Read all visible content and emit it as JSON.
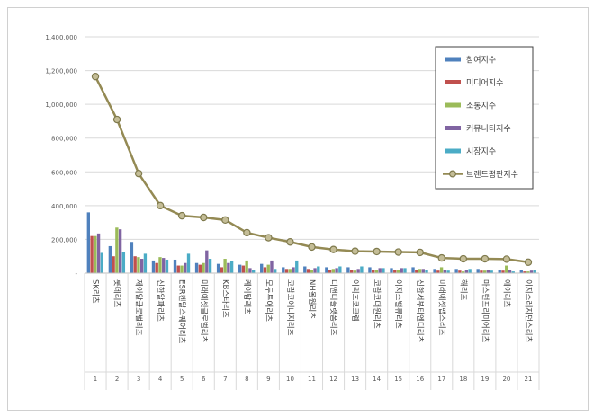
{
  "chart_data": {
    "type": "bar",
    "title": "",
    "xlabel": "",
    "ylabel": "",
    "ylim": [
      0,
      1400000
    ],
    "yticks": [
      "-",
      "200,000",
      "400,000",
      "600,000",
      "800,000",
      "1,000,000",
      "1,200,000",
      "1,400,000"
    ],
    "grid": true,
    "legend_position": "top-right",
    "categories": [
      "SK리츠",
      "롯데리츠",
      "제이알글로벌리츠",
      "신한알파리츠",
      "ESR켄달스퀘어리츠",
      "미래에셋글로벌리츠",
      "KB스타리츠",
      "케이탑리츠",
      "모두투어리츠",
      "코람코에너지리츠",
      "NH올원리츠",
      "디앤디플랫폼리츠",
      "이리츠코크렙",
      "코람코더원리츠",
      "이지스밸류리츠",
      "신한서부티엔디리츠",
      "미래에셋맵스리츠",
      "해리츠",
      "마스턴프리미어리츠",
      "에이리츠",
      "이지스레지던스리츠"
    ],
    "ranks": [
      "1",
      "2",
      "3",
      "4",
      "5",
      "6",
      "7",
      "8",
      "9",
      "10",
      "11",
      "12",
      "13",
      "14",
      "15",
      "16",
      "17",
      "18",
      "19",
      "20",
      "21"
    ],
    "series": [
      {
        "name": "참여지수",
        "kind": "bar",
        "color": "#4f81bd",
        "values": [
          360000,
          160000,
          185000,
          75000,
          80000,
          60000,
          55000,
          50000,
          55000,
          35000,
          40000,
          35000,
          35000,
          35000,
          30000,
          35000,
          25000,
          25000,
          25000,
          20000,
          20000
        ]
      },
      {
        "name": "미디어지수",
        "kind": "bar",
        "color": "#c0504d",
        "values": [
          220000,
          100000,
          100000,
          60000,
          45000,
          50000,
          35000,
          45000,
          35000,
          25000,
          25000,
          20000,
          20000,
          20000,
          20000,
          20000,
          15000,
          15000,
          15000,
          15000,
          10000
        ]
      },
      {
        "name": "소통지수",
        "kind": "bar",
        "color": "#9bbb59",
        "values": [
          220000,
          270000,
          95000,
          95000,
          45000,
          60000,
          85000,
          75000,
          50000,
          25000,
          20000,
          25000,
          15000,
          20000,
          20000,
          25000,
          35000,
          10000,
          15000,
          45000,
          10000
        ]
      },
      {
        "name": "커뮤니티지수",
        "kind": "bar",
        "color": "#8064a2",
        "values": [
          235000,
          260000,
          85000,
          90000,
          60000,
          135000,
          60000,
          30000,
          75000,
          35000,
          30000,
          30000,
          25000,
          30000,
          30000,
          25000,
          20000,
          20000,
          20000,
          20000,
          15000
        ]
      },
      {
        "name": "시장지수",
        "kind": "bar",
        "color": "#4bacc6",
        "values": [
          120000,
          125000,
          115000,
          80000,
          115000,
          85000,
          70000,
          20000,
          25000,
          75000,
          40000,
          40000,
          40000,
          30000,
          30000,
          20000,
          15000,
          25000,
          15000,
          10000,
          20000
        ]
      },
      {
        "name": "브랜드평판지수",
        "kind": "line",
        "color": "#948a54",
        "values": [
          1165000,
          910000,
          590000,
          400000,
          340000,
          330000,
          315000,
          240000,
          210000,
          185000,
          155000,
          140000,
          130000,
          128000,
          125000,
          123000,
          90000,
          85000,
          85000,
          83000,
          65000
        ]
      }
    ]
  }
}
